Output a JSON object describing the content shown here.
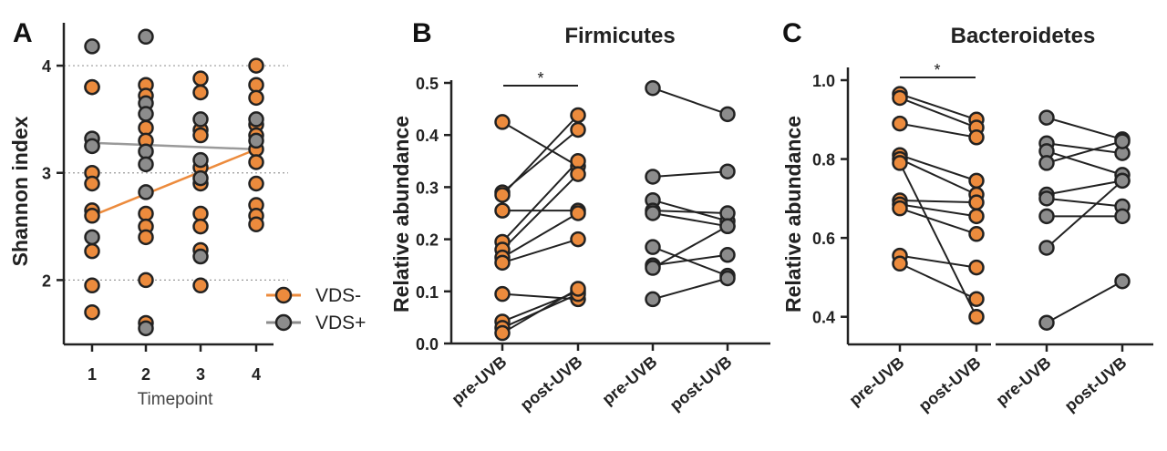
{
  "colors": {
    "orange": "#ec8b3d",
    "gray": "#8c8c8c",
    "trend_gray": "#9a9a9a",
    "stroke": "#222222"
  },
  "chart_data": [
    {
      "panel": "A",
      "type": "scatter",
      "title": "",
      "xlabel": "Timepoint",
      "ylabel": "Shannon index",
      "categories": [
        "1",
        "2",
        "3",
        "4"
      ],
      "ylim": [
        1.4,
        4.4
      ],
      "yticks": [
        2,
        3,
        4
      ],
      "grid_y": [
        2,
        3,
        4
      ],
      "legend": [
        "VDS-",
        "VDS+"
      ],
      "series": [
        {
          "name": "VDS-",
          "color": "orange",
          "points": {
            "1": [
              3.8,
              3.8,
              3.25,
              3.0,
              2.9,
              2.65,
              2.6,
              2.27,
              1.95,
              1.7
            ],
            "2": [
              3.82,
              3.72,
              3.42,
              3.3,
              2.62,
              2.5,
              2.4,
              2.0,
              1.6
            ],
            "3": [
              3.88,
              3.75,
              3.4,
              3.35,
              3.05,
              2.9,
              2.62,
              2.5,
              2.28,
              1.95
            ],
            "4": [
              4.0,
              3.82,
              3.7,
              3.45,
              3.35,
              3.22,
              3.1,
              2.9,
              2.7,
              2.6,
              2.52
            ]
          },
          "trend": [
            2.6,
            3.22
          ]
        },
        {
          "name": "VDS+",
          "color": "gray",
          "points": {
            "1": [
              4.18,
              3.32,
              3.25,
              2.4
            ],
            "2": [
              4.27,
              3.65,
              3.55,
              3.2,
              3.08,
              2.82,
              1.55
            ],
            "3": [
              3.5,
              3.12,
              2.95,
              2.22
            ],
            "4": [
              3.5,
              3.3
            ]
          },
          "trend": [
            3.28,
            3.22
          ]
        }
      ]
    },
    {
      "panel": "B",
      "type": "paired-line",
      "title": "Firmicutes",
      "ylabel": "Relative abundance",
      "ylim": [
        0.0,
        0.5
      ],
      "yticks": [
        "0.0",
        "0.1",
        "0.2",
        "0.3",
        "0.4",
        "0.5"
      ],
      "categories": [
        "pre-UVB",
        "post-UVB",
        "pre-UVB",
        "post-UVB"
      ],
      "significance": "*",
      "groups": [
        {
          "name": "VDS-",
          "color": "orange",
          "pairs": [
            [
              0.425,
              0.34
            ],
            [
              0.29,
              0.41
            ],
            [
              0.285,
              0.438
            ],
            [
              0.255,
              0.255
            ],
            [
              0.195,
              0.35
            ],
            [
              0.18,
              0.325
            ],
            [
              0.165,
              0.25
            ],
            [
              0.155,
              0.2
            ],
            [
              0.095,
              0.085
            ],
            [
              0.042,
              0.1
            ],
            [
              0.03,
              0.095
            ],
            [
              0.02,
              0.105
            ]
          ]
        },
        {
          "name": "VDS+",
          "color": "gray",
          "pairs": [
            [
              0.49,
              0.44
            ],
            [
              0.32,
              0.33
            ],
            [
              0.275,
              0.235
            ],
            [
              0.255,
              0.25
            ],
            [
              0.25,
              0.225
            ],
            [
              0.185,
              0.13
            ],
            [
              0.15,
              0.17
            ],
            [
              0.145,
              0.225
            ],
            [
              0.085,
              0.125
            ]
          ]
        }
      ]
    },
    {
      "panel": "C",
      "type": "paired-line",
      "title": "Bacteroidetes",
      "ylabel": "Relative abundance",
      "ylim": [
        0.33,
        1.0
      ],
      "yticks": [
        "0.4",
        "0.6",
        "0.8",
        "1.0"
      ],
      "categories": [
        "pre-UVB",
        "post-UVB",
        "pre-UVB",
        "post-UVB"
      ],
      "significance": "*",
      "groups": [
        {
          "name": "VDS-",
          "color": "orange",
          "pairs": [
            [
              0.965,
              0.9
            ],
            [
              0.955,
              0.88
            ],
            [
              0.89,
              0.855
            ],
            [
              0.81,
              0.745
            ],
            [
              0.8,
              0.71
            ],
            [
              0.79,
              0.4
            ],
            [
              0.695,
              0.69
            ],
            [
              0.685,
              0.655
            ],
            [
              0.675,
              0.61
            ],
            [
              0.555,
              0.525
            ],
            [
              0.535,
              0.445
            ]
          ]
        },
        {
          "name": "VDS+",
          "color": "gray",
          "pairs": [
            [
              0.905,
              0.85
            ],
            [
              0.84,
              0.815
            ],
            [
              0.82,
              0.76
            ],
            [
              0.79,
              0.845
            ],
            [
              0.71,
              0.745
            ],
            [
              0.7,
              0.68
            ],
            [
              0.655,
              0.655
            ],
            [
              0.575,
              0.745
            ],
            [
              0.385,
              0.49
            ]
          ]
        }
      ]
    }
  ]
}
